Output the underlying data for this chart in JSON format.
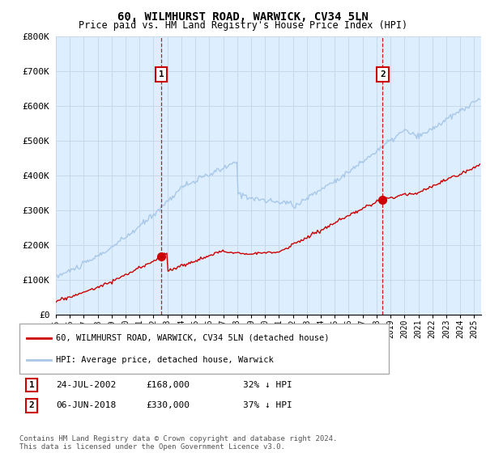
{
  "title": "60, WILMHURST ROAD, WARWICK, CV34 5LN",
  "subtitle": "Price paid vs. HM Land Registry's House Price Index (HPI)",
  "ylabel_ticks": [
    "£0",
    "£100K",
    "£200K",
    "£300K",
    "£400K",
    "£500K",
    "£600K",
    "£700K",
    "£800K"
  ],
  "ylim": [
    0,
    800000
  ],
  "xlim_start": 1995.0,
  "xlim_end": 2025.5,
  "transaction1_date": 2002.56,
  "transaction1_price": 168000,
  "transaction2_date": 2018.43,
  "transaction2_price": 330000,
  "hpi_color": "#a8c8e8",
  "price_color": "#cc0000",
  "vline_color": "#cc0000",
  "marker_color": "#cc0000",
  "plot_bg_color": "#ddeeff",
  "label1": "60, WILMHURST ROAD, WARWICK, CV34 5LN (detached house)",
  "label2": "HPI: Average price, detached house, Warwick",
  "annotation1_label": "1",
  "annotation2_label": "2",
  "ann1_date": "24-JUL-2002",
  "ann1_price": "£168,000",
  "ann1_pct": "32% ↓ HPI",
  "ann2_date": "06-JUN-2018",
  "ann2_price": "£330,000",
  "ann2_pct": "37% ↓ HPI",
  "footer": "Contains HM Land Registry data © Crown copyright and database right 2024.\nThis data is licensed under the Open Government Licence v3.0.",
  "background_color": "#ffffff",
  "grid_color": "#c8d8e8"
}
